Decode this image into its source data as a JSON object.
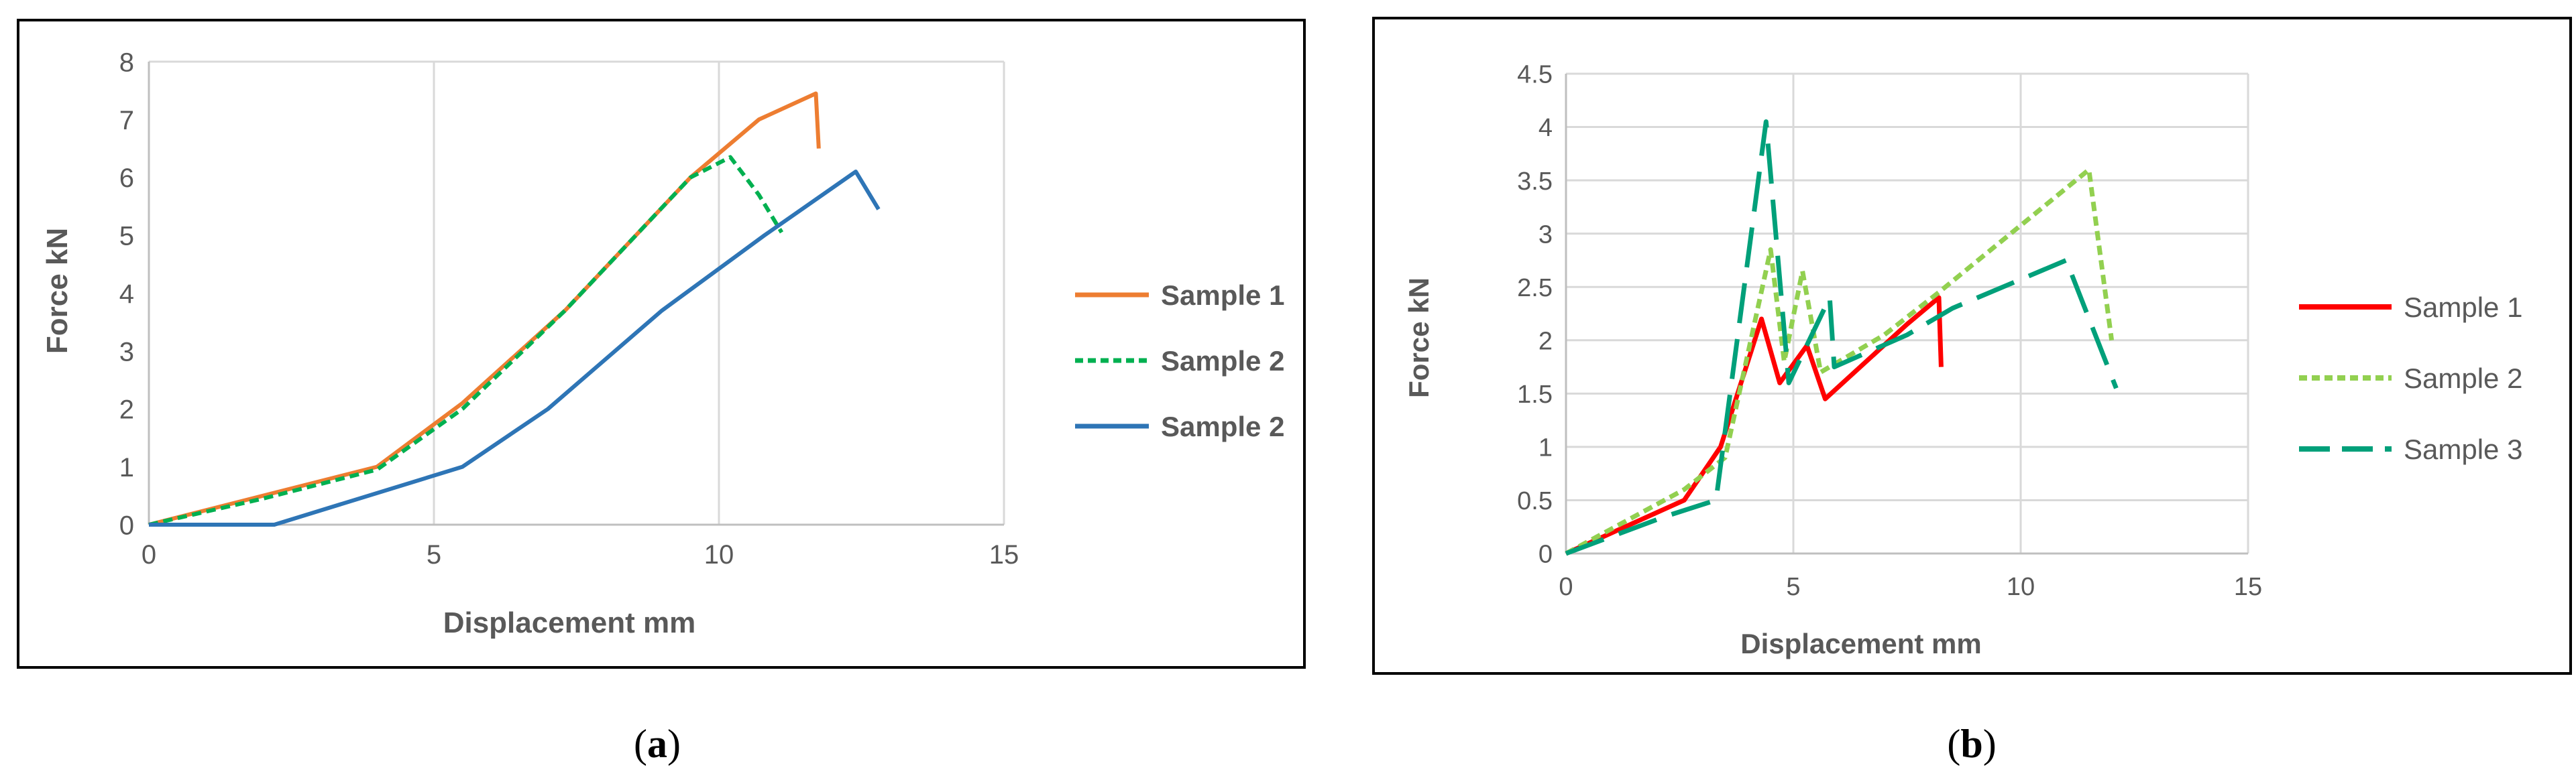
{
  "chart_data": [
    {
      "type": "line",
      "panel_label": "a",
      "xlabel": "Displacement  mm",
      "ylabel": "Force kN",
      "xlim": [
        0,
        15
      ],
      "ylim": [
        0,
        8
      ],
      "x_ticks": [
        "0",
        "5",
        "10",
        "15"
      ],
      "y_ticks": [
        "0",
        "1",
        "2",
        "3",
        "4",
        "5",
        "6",
        "7",
        "8"
      ],
      "grid": "vertical",
      "legend_position": "right",
      "series": [
        {
          "name": "Sample 1",
          "color": "#ED7D31",
          "dash": "solid",
          "points": [
            [
              0,
              0
            ],
            [
              2,
              0.5
            ],
            [
              4,
              1
            ],
            [
              5.5,
              2.1
            ],
            [
              7.3,
              3.7
            ],
            [
              9.5,
              6
            ],
            [
              10.7,
              7
            ],
            [
              11.7,
              7.45
            ],
            [
              11.75,
              6.5
            ]
          ]
        },
        {
          "name": "Sample 2",
          "color": "#00B050",
          "dash": "dotted",
          "points": [
            [
              0,
              0
            ],
            [
              2,
              0.45
            ],
            [
              4,
              0.95
            ],
            [
              5.5,
              2
            ],
            [
              7.3,
              3.7
            ],
            [
              9.5,
              6
            ],
            [
              10.2,
              6.35
            ],
            [
              10.7,
              5.7
            ],
            [
              11.1,
              5.05
            ]
          ]
        },
        {
          "name": "Sample 2",
          "color": "#2E75B6",
          "dash": "solid",
          "points": [
            [
              0,
              0
            ],
            [
              2.2,
              0
            ],
            [
              5.5,
              1
            ],
            [
              7,
              2
            ],
            [
              9,
              3.7
            ],
            [
              10.8,
              5
            ],
            [
              12.4,
              6.1
            ],
            [
              12.8,
              5.45
            ]
          ]
        }
      ]
    },
    {
      "type": "line",
      "panel_label": "b",
      "xlabel": "Displacement mm",
      "ylabel": "Force kN",
      "xlim": [
        0,
        15
      ],
      "ylim": [
        0,
        4.5
      ],
      "x_ticks": [
        "0",
        "5",
        "10",
        "15"
      ],
      "y_ticks": [
        "0",
        "0.5",
        "1",
        "1.5",
        "2",
        "2.5",
        "3",
        "3.5",
        "4",
        "4.5"
      ],
      "grid": "both",
      "legend_position": "right",
      "series": [
        {
          "name": "Sample 1",
          "color": "#FF0000",
          "dash": "solid",
          "points": [
            [
              0,
              0
            ],
            [
              2.6,
              0.5
            ],
            [
              3.4,
              1
            ],
            [
              4.3,
              2.2
            ],
            [
              4.7,
              1.6
            ],
            [
              5.3,
              1.95
            ],
            [
              5.7,
              1.45
            ],
            [
              7.5,
              2.15
            ],
            [
              8.2,
              2.4
            ],
            [
              8.25,
              1.75
            ]
          ]
        },
        {
          "name": "Sample 2",
          "color": "#92D050",
          "dash": "dotted",
          "points": [
            [
              0,
              0
            ],
            [
              2.6,
              0.6
            ],
            [
              3.5,
              0.9
            ],
            [
              4.5,
              2.85
            ],
            [
              4.8,
              1.8
            ],
            [
              5.2,
              2.65
            ],
            [
              5.6,
              1.7
            ],
            [
              7,
              2.05
            ],
            [
              8.2,
              2.45
            ],
            [
              11.5,
              3.6
            ],
            [
              12,
              2
            ]
          ]
        },
        {
          "name": "Sample 3",
          "color": "#00A07A",
          "dash": "longdash",
          "points": [
            [
              0,
              0
            ],
            [
              2.2,
              0.35
            ],
            [
              3.3,
              0.5
            ],
            [
              4.4,
              4.05
            ],
            [
              4.9,
              1.6
            ],
            [
              5.8,
              2.4
            ],
            [
              5.9,
              1.75
            ],
            [
              7.5,
              2.05
            ],
            [
              8.5,
              2.3
            ],
            [
              11,
              2.75
            ],
            [
              12.1,
              1.55
            ]
          ]
        }
      ]
    }
  ]
}
